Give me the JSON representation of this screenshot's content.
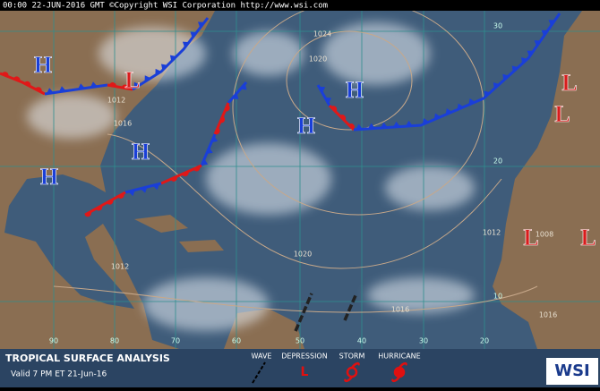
{
  "header": {
    "text": "00:00 22-JUN-2016 GMT  ©Copyright WSI Corporation  http://www.wsi.com"
  },
  "pressure_centers": [
    "H",
    "H",
    "H",
    "H",
    "H",
    "L",
    "L",
    "L",
    "L",
    "L"
  ],
  "isobar_labels": [
    "1024",
    "1020",
    "1012",
    "1016",
    "1012",
    "1020",
    "1016",
    "1012",
    "1008",
    "1016"
  ],
  "longitude_labels": [
    "90",
    "80",
    "70",
    "60",
    "50",
    "40",
    "30",
    "20"
  ],
  "latitude_labels": [
    "30",
    "20",
    "10"
  ],
  "legend": {
    "title": "TROPICAL SURFACE ANALYSIS",
    "valid": "Valid 7 PM ET 21-Jun-16",
    "items": [
      "WAVE",
      "DEPRESSION",
      "STORM",
      "HURRICANE"
    ],
    "depression_symbol": "L",
    "logo": "WSI"
  }
}
